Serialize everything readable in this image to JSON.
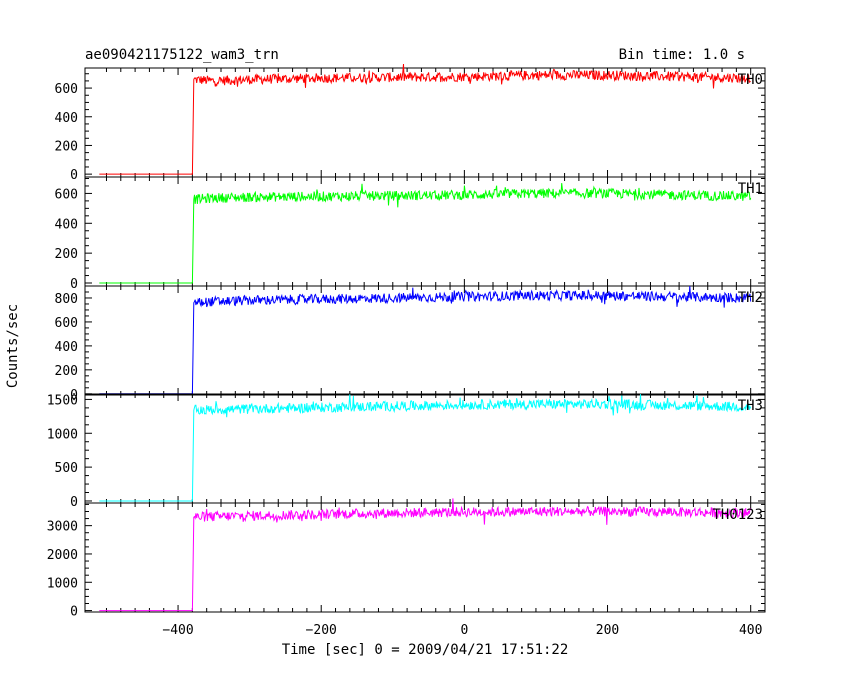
{
  "header": {
    "title": "ae090421175122_wam3_trn",
    "bin_time": "Bin time: 1.0 s"
  },
  "chart_data": {
    "type": "line",
    "title": "ae090421175122_wam3_trn",
    "xlabel": "Time [sec] 0 = 2009/04/21 17:51:22",
    "ylabel": "Counts/sec",
    "xlim": [
      -530,
      420
    ],
    "x_ticks": [
      -400,
      -200,
      0,
      200,
      400
    ],
    "x_tick_labels": [
      "−400",
      "−200",
      "0",
      "200",
      "400"
    ],
    "grid": false,
    "panels": [
      {
        "name": "TH0",
        "color": "#ff0000",
        "ylim": [
          -20,
          740
        ],
        "y_ticks": [
          0,
          200,
          400,
          600
        ],
        "y_tick_labels": [
          "0",
          "200",
          "400",
          "600"
        ],
        "x": [
          -510,
          -384,
          -380,
          -378,
          -350,
          -300,
          -200,
          -100,
          0,
          100,
          200,
          300,
          400
        ],
        "y": [
          0,
          0,
          0,
          660,
          650,
          660,
          670,
          675,
          680,
          690,
          690,
          680,
          670
        ]
      },
      {
        "name": "TH1",
        "color": "#00ff00",
        "ylim": [
          -20,
          710
        ],
        "y_ticks": [
          0,
          200,
          400,
          600
        ],
        "y_tick_labels": [
          "0",
          "200",
          "400",
          "600"
        ],
        "x": [
          -510,
          -384,
          -380,
          -378,
          -350,
          -300,
          -200,
          -100,
          0,
          100,
          200,
          300,
          400
        ],
        "y": [
          0,
          0,
          0,
          560,
          570,
          575,
          580,
          585,
          590,
          600,
          600,
          590,
          580
        ]
      },
      {
        "name": "TH2",
        "color": "#0000ff",
        "ylim": [
          -10,
          900
        ],
        "y_ticks": [
          0,
          200,
          400,
          600,
          800
        ],
        "y_tick_labels": [
          "0",
          "200",
          "400",
          "600",
          "800"
        ],
        "x": [
          -510,
          -384,
          -380,
          -378,
          -350,
          -300,
          -200,
          -100,
          0,
          100,
          200,
          300,
          400
        ],
        "y": [
          0,
          0,
          0,
          760,
          770,
          780,
          790,
          800,
          810,
          820,
          820,
          810,
          800
        ]
      },
      {
        "name": "TH3",
        "color": "#00ffff",
        "ylim": [
          -30,
          1580
        ],
        "y_ticks": [
          0,
          500,
          1000,
          1500
        ],
        "y_tick_labels": [
          "0",
          "500",
          "1000",
          "1500"
        ],
        "x": [
          -510,
          -384,
          -380,
          -378,
          -350,
          -300,
          -200,
          -100,
          0,
          100,
          200,
          300,
          400
        ],
        "y": [
          0,
          0,
          0,
          1340,
          1350,
          1360,
          1380,
          1400,
          1420,
          1430,
          1430,
          1410,
          1390
        ]
      },
      {
        "name": "TH0123",
        "color": "#ff00ff",
        "ylim": [
          -50,
          3800
        ],
        "y_ticks": [
          0,
          1000,
          2000,
          3000
        ],
        "y_tick_labels": [
          "0",
          "1000",
          "2000",
          "3000"
        ],
        "x": [
          -510,
          -384,
          -380,
          -378,
          -350,
          -300,
          -200,
          -100,
          0,
          100,
          200,
          300,
          400
        ],
        "y": [
          0,
          0,
          0,
          3300,
          3320,
          3350,
          3400,
          3450,
          3480,
          3500,
          3500,
          3480,
          3450
        ]
      }
    ]
  }
}
